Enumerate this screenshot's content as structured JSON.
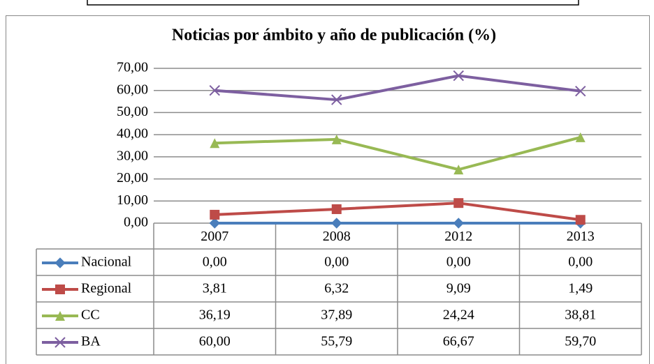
{
  "chart_data": {
    "type": "line",
    "title": "Noticias por ámbito y año de publicación (%)",
    "categories": [
      "2007",
      "2008",
      "2012",
      "2013"
    ],
    "series": [
      {
        "name": "Nacional",
        "color": "#4a7ebb",
        "marker": "diamond",
        "values": [
          0.0,
          0.0,
          0.0,
          0.0
        ],
        "value_labels": [
          "0,00",
          "0,00",
          "0,00",
          "0,00"
        ]
      },
      {
        "name": "Regional",
        "color": "#be4b48",
        "marker": "square",
        "values": [
          3.81,
          6.32,
          9.09,
          1.49
        ],
        "value_labels": [
          "3,81",
          "6,32",
          "9,09",
          "1,49"
        ]
      },
      {
        "name": "CC",
        "color": "#98b954",
        "marker": "triangle",
        "values": [
          36.19,
          37.89,
          24.24,
          38.81
        ],
        "value_labels": [
          "36,19",
          "37,89",
          "24,24",
          "38,81"
        ]
      },
      {
        "name": "BA",
        "color": "#7d5fa0",
        "marker": "x",
        "values": [
          60.0,
          55.79,
          66.67,
          59.7
        ],
        "value_labels": [
          "60,00",
          "55,79",
          "66,67",
          "59,70"
        ]
      }
    ],
    "ylim": [
      0,
      70
    ],
    "yticks": [
      {
        "value": 0,
        "label": "0,00"
      },
      {
        "value": 10,
        "label": "10,00"
      },
      {
        "value": 20,
        "label": "20,00"
      },
      {
        "value": 30,
        "label": "30,00"
      },
      {
        "value": 40,
        "label": "40,00"
      },
      {
        "value": 50,
        "label": "50,00"
      },
      {
        "value": 60,
        "label": "60,00"
      },
      {
        "value": 70,
        "label": "70,00"
      }
    ],
    "grid": true
  }
}
